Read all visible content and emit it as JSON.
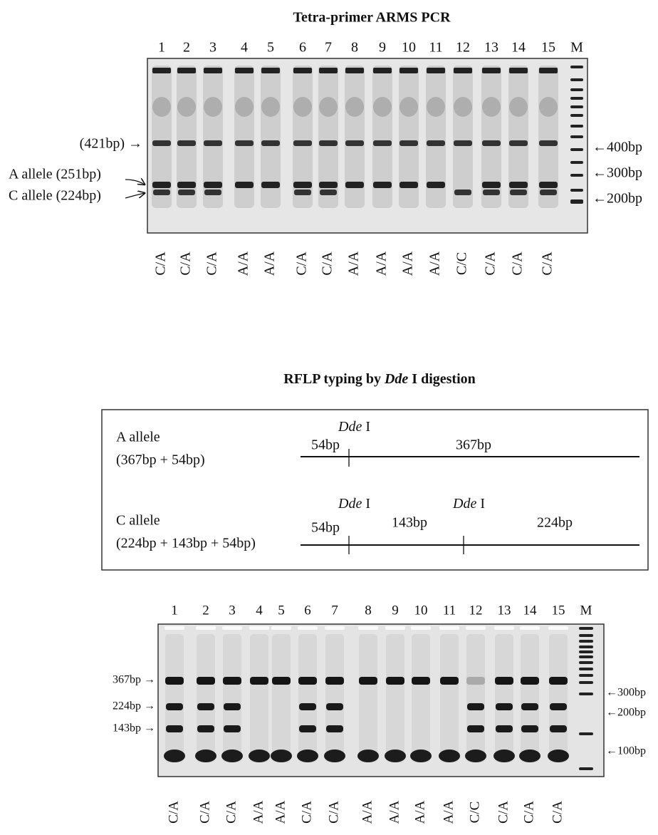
{
  "top_panel": {
    "title": "Tetra-primer ARMS PCR",
    "lanes": [
      "1",
      "2",
      "3",
      "4",
      "5",
      "6",
      "7",
      "8",
      "9",
      "10",
      "11",
      "12",
      "13",
      "14",
      "15",
      "M"
    ],
    "left_labels": [
      "(421bp) →",
      "A allele (251bp)",
      "C allele (224bp)"
    ],
    "right_labels": [
      "←400bp",
      "←300bp",
      "←200bp"
    ],
    "genotypes": [
      "C/A",
      "C/A",
      "C/A",
      "A/A",
      "A/A",
      "C/A",
      "C/A",
      "A/A",
      "A/A",
      "A/A",
      "A/A",
      "C/C",
      "C/A",
      "C/A",
      "C/A"
    ]
  },
  "rflp_panel": {
    "title": "RFLP typing by",
    "title_enzyme": "Dde",
    "title_end": "I digestion",
    "a_allele": {
      "name": "A allele",
      "composition": "(367bp + 54bp)",
      "fragments": [
        "54bp",
        "367bp"
      ]
    },
    "c_allele": {
      "name": "C allele",
      "composition": "(224bp + 143bp + 54bp)",
      "fragments": [
        "54bp",
        "143bp",
        "224bp"
      ]
    },
    "enzyme": "Dde",
    "enzyme_suffix": "I"
  },
  "bottom_panel": {
    "lanes": [
      "1",
      "2",
      "3",
      "4",
      "5",
      "6",
      "7",
      "8",
      "9",
      "10",
      "11",
      "12",
      "13",
      "14",
      "15",
      "M"
    ],
    "left_labels": [
      "367bp →",
      "224bp →",
      "143bp →"
    ],
    "right_labels": [
      "←300bp",
      "←200bp",
      "←100bp"
    ],
    "genotypes": [
      "C/A",
      "C/A",
      "C/A",
      "A/A",
      "A/A",
      "C/A",
      "C/A",
      "A/A",
      "A/A",
      "A/A",
      "A/A",
      "C/C",
      "C/A",
      "C/A",
      "C/A"
    ]
  }
}
